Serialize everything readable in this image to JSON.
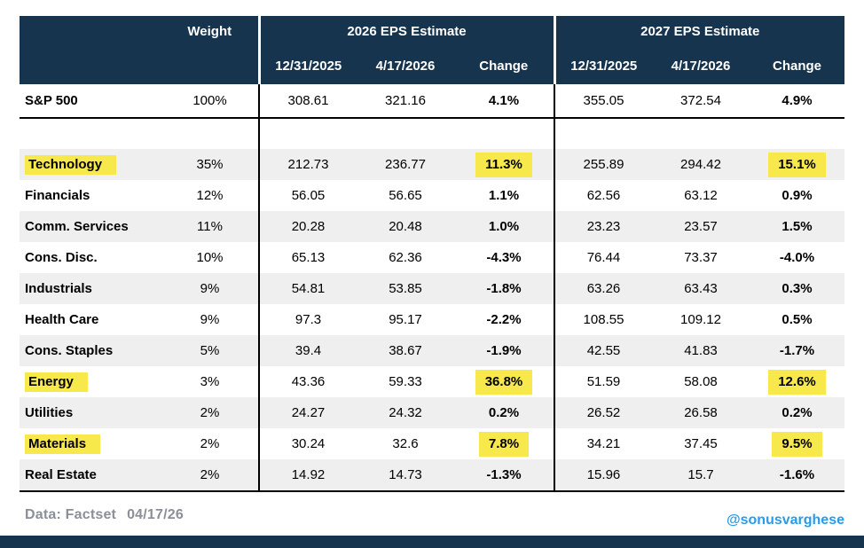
{
  "chart_data": {
    "type": "table",
    "weight_column": "Weight",
    "group_columns": [
      "2026 EPS Estimate",
      "2027 EPS Estimate"
    ],
    "sub_columns": [
      "12/31/2025",
      "4/17/2026",
      "Change"
    ],
    "highlighted_sectors": [
      "Technology",
      "Energy",
      "Materials"
    ],
    "rows": [
      {
        "name": "S&P 500",
        "weight": "100%",
        "values": [
          "308.61",
          "321.16",
          "4.1%",
          "355.05",
          "372.54",
          "4.9%"
        ],
        "highlight": false,
        "shade": false,
        "index": true
      },
      {
        "name": "Technology",
        "weight": "35%",
        "values": [
          "212.73",
          "236.77",
          "11.3%",
          "255.89",
          "294.42",
          "15.1%"
        ],
        "highlight": true,
        "shade": true,
        "index": false
      },
      {
        "name": "Financials",
        "weight": "12%",
        "values": [
          "56.05",
          "56.65",
          "1.1%",
          "62.56",
          "63.12",
          "0.9%"
        ],
        "highlight": false,
        "shade": false,
        "index": false
      },
      {
        "name": "Comm. Services",
        "weight": "11%",
        "values": [
          "20.28",
          "20.48",
          "1.0%",
          "23.23",
          "23.57",
          "1.5%"
        ],
        "highlight": false,
        "shade": true,
        "index": false
      },
      {
        "name": "Cons. Disc.",
        "weight": "10%",
        "values": [
          "65.13",
          "62.36",
          "-4.3%",
          "76.44",
          "73.37",
          "-4.0%"
        ],
        "highlight": false,
        "shade": false,
        "index": false
      },
      {
        "name": "Industrials",
        "weight": "9%",
        "values": [
          "54.81",
          "53.85",
          "-1.8%",
          "63.26",
          "63.43",
          "0.3%"
        ],
        "highlight": false,
        "shade": true,
        "index": false
      },
      {
        "name": "Health Care",
        "weight": "9%",
        "values": [
          "97.3",
          "95.17",
          "-2.2%",
          "108.55",
          "109.12",
          "0.5%"
        ],
        "highlight": false,
        "shade": false,
        "index": false
      },
      {
        "name": "Cons. Staples",
        "weight": "5%",
        "values": [
          "39.4",
          "38.67",
          "-1.9%",
          "42.55",
          "41.83",
          "-1.7%"
        ],
        "highlight": false,
        "shade": true,
        "index": false
      },
      {
        "name": "Energy",
        "weight": "3%",
        "values": [
          "43.36",
          "59.33",
          "36.8%",
          "51.59",
          "58.08",
          "12.6%"
        ],
        "highlight": true,
        "shade": false,
        "index": false
      },
      {
        "name": "Utilities",
        "weight": "2%",
        "values": [
          "24.27",
          "24.32",
          "0.2%",
          "26.52",
          "26.58",
          "0.2%"
        ],
        "highlight": false,
        "shade": true,
        "index": false
      },
      {
        "name": "Materials",
        "weight": "2%",
        "values": [
          "30.24",
          "32.6",
          "7.8%",
          "34.21",
          "37.45",
          "9.5%"
        ],
        "highlight": true,
        "shade": false,
        "index": false
      },
      {
        "name": "Real Estate",
        "weight": "2%",
        "values": [
          "14.92",
          "14.73",
          "-1.3%",
          "15.96",
          "15.7",
          "-1.6%"
        ],
        "highlight": false,
        "shade": true,
        "index": false
      }
    ]
  },
  "footer": {
    "source": "Data: Factset",
    "date": "04/17/26",
    "handle": "@sonusvarghese"
  },
  "colors": {
    "navy": "#16344e",
    "stripe": "#efefef",
    "highlight": "#f7e84c",
    "handleBlue": "#2a9be6",
    "footerGray": "#8a8f98",
    "divider": "#000000"
  }
}
